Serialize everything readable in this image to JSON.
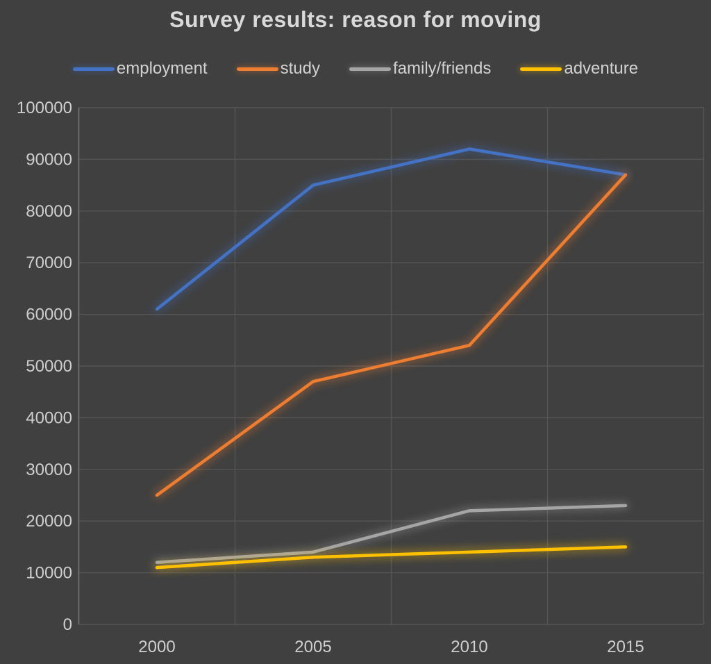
{
  "title": "Survey results: reason for moving",
  "colors": {
    "background": "#404040",
    "title_text": "#d9d9d9",
    "axis_text": "#cfcfcf",
    "gridline": "#555555",
    "axis_line": "#757575"
  },
  "chart_data": {
    "type": "line",
    "title": "Survey results: reason for moving",
    "categories": [
      "2000",
      "2005",
      "2010",
      "2015"
    ],
    "series": [
      {
        "name": "employment",
        "color": "#4472c4",
        "values": [
          61000,
          85000,
          92000,
          87000
        ]
      },
      {
        "name": "study",
        "color": "#ed7d31",
        "values": [
          25000,
          47000,
          54000,
          87000
        ]
      },
      {
        "name": "family/friends",
        "color": "#a5a5a5",
        "values": [
          12000,
          14000,
          22000,
          23000
        ]
      },
      {
        "name": "adventure",
        "color": "#ffc000",
        "values": [
          11000,
          13000,
          14000,
          15000
        ]
      }
    ],
    "xlabel": "",
    "ylabel": "",
    "ylim": [
      0,
      100000
    ],
    "ytick_step": 10000,
    "grid": true,
    "legend_position": "top",
    "line_glow": true
  }
}
